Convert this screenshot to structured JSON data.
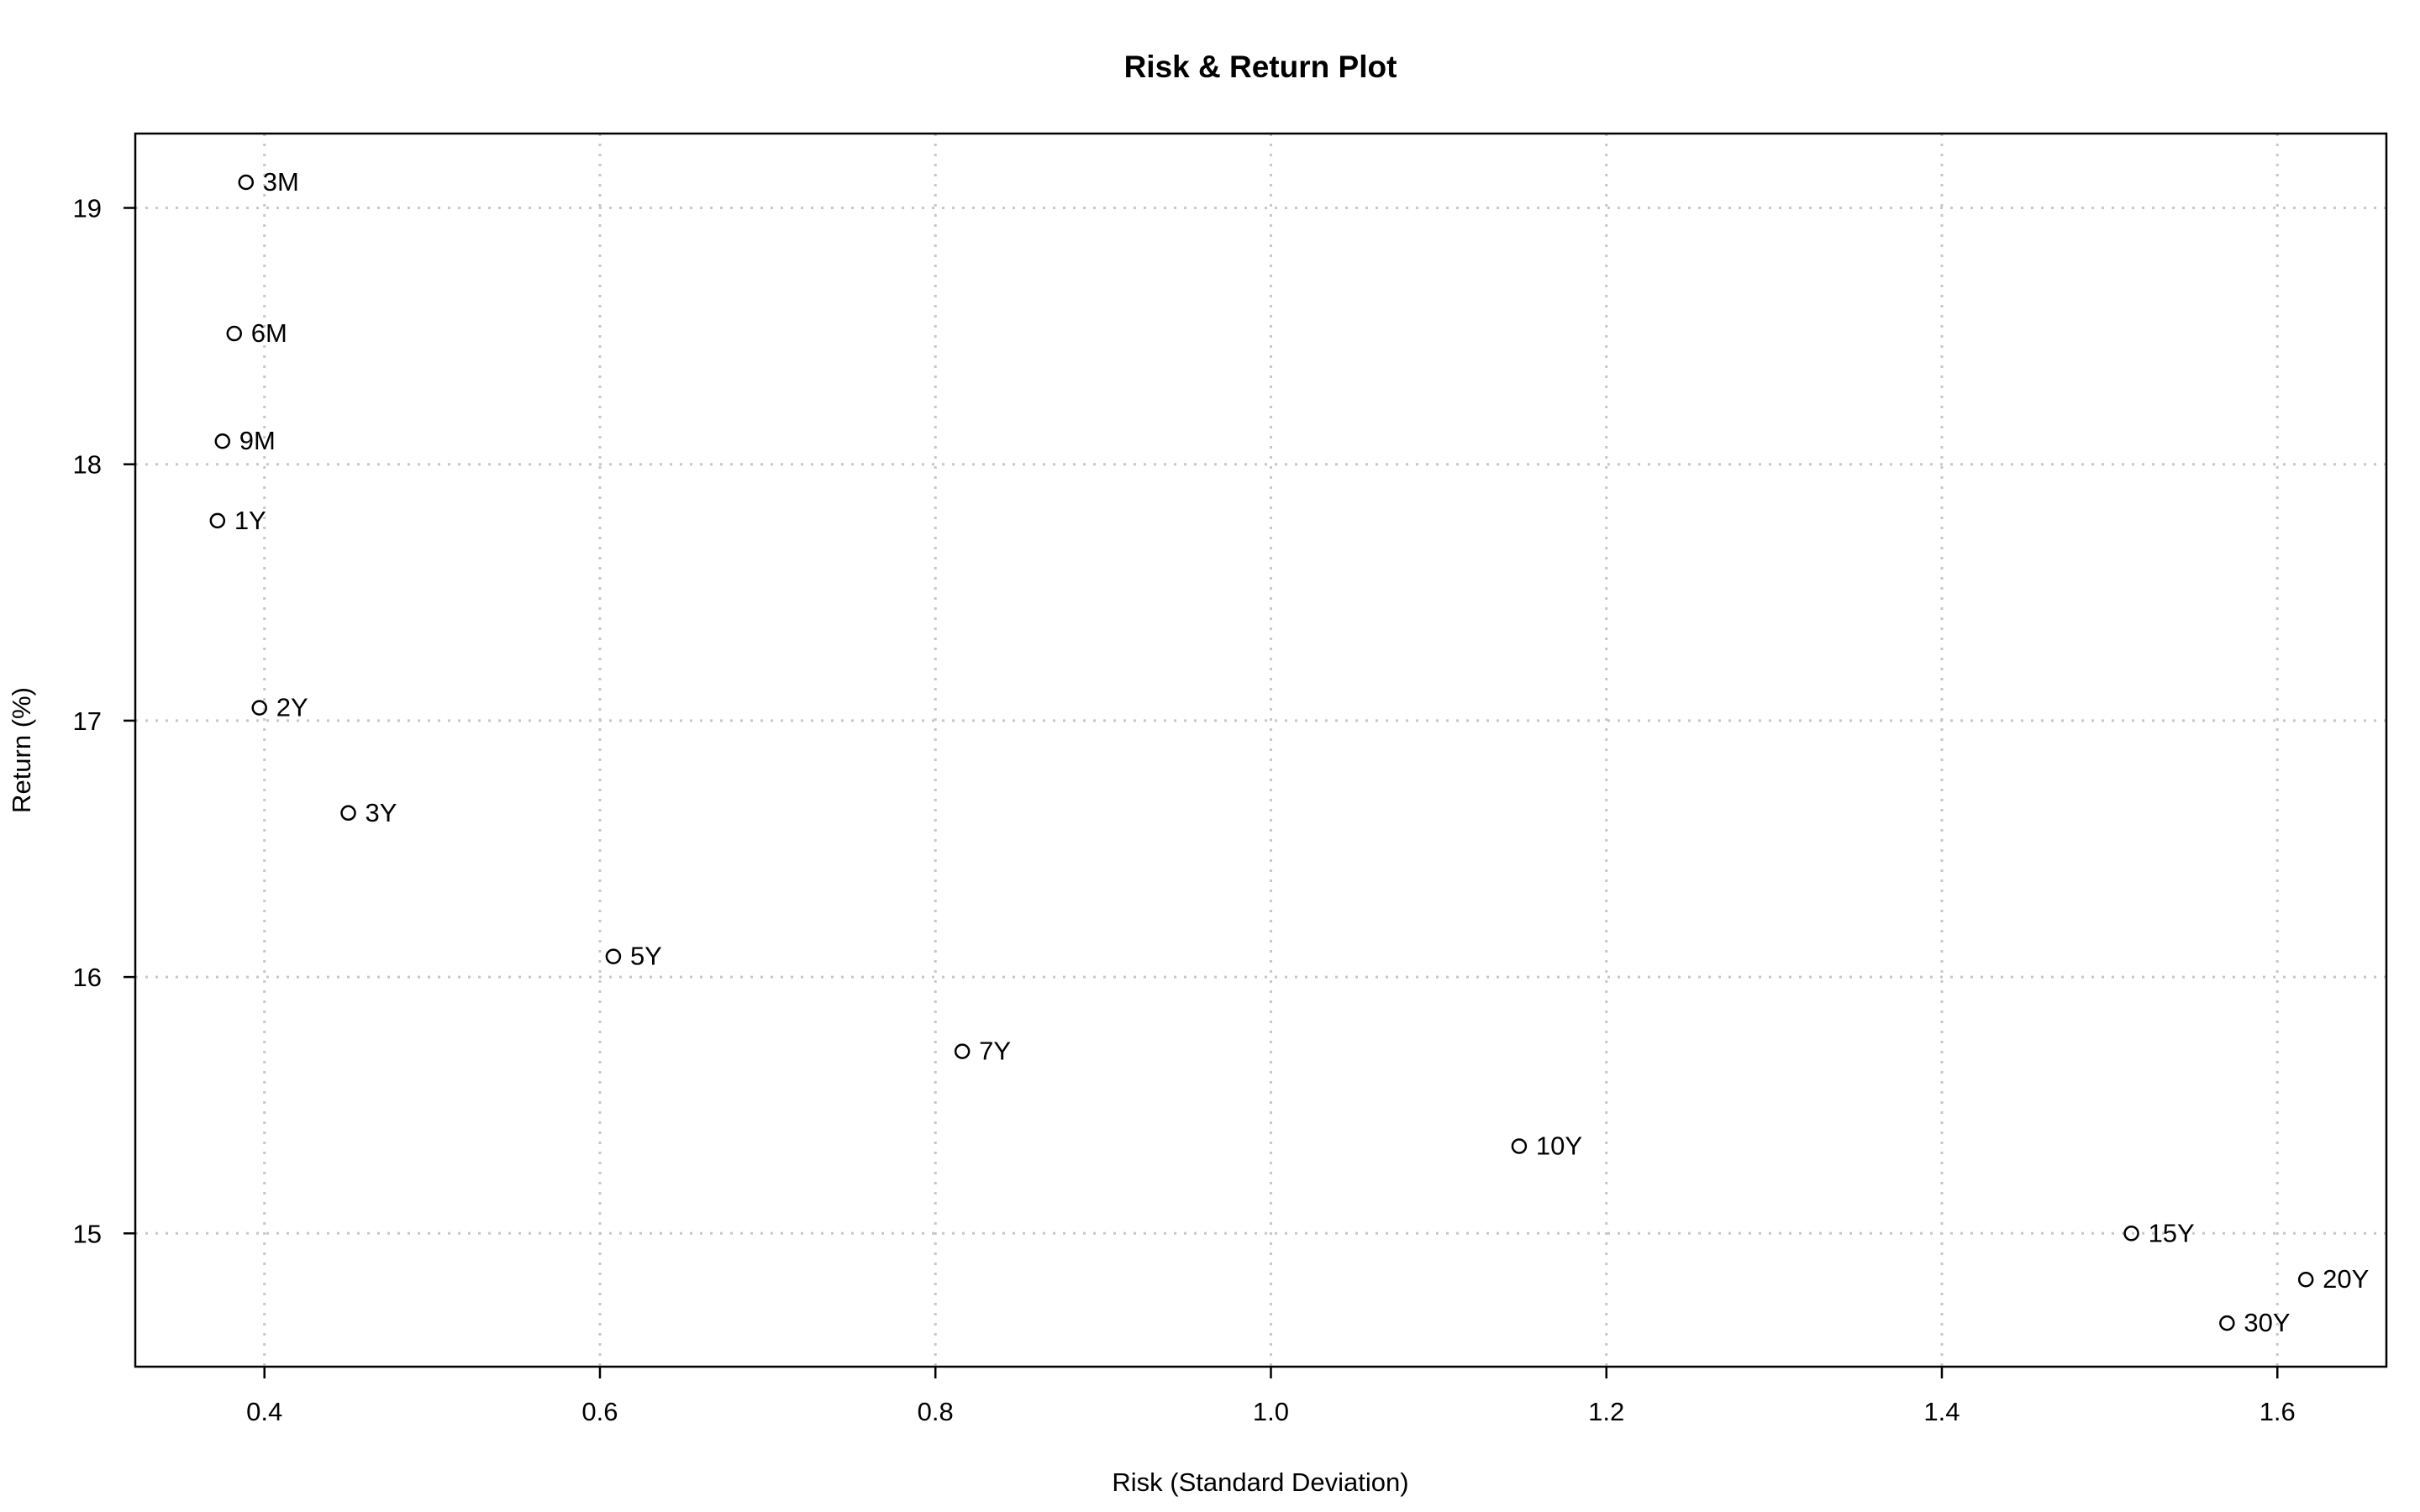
{
  "chart_data": {
    "type": "scatter",
    "title": "Risk & Return Plot",
    "xlabel": "Risk (Standard Deviation)",
    "ylabel": "Return (%)",
    "xlim": [
      0.323,
      1.665
    ],
    "ylim": [
      14.48,
      19.29
    ],
    "grid": true,
    "x_ticks": [
      0.4,
      0.6,
      0.8,
      1.0,
      1.2,
      1.4,
      1.6
    ],
    "x_tick_labels": [
      "0.4",
      "0.6",
      "0.8",
      "1.0",
      "1.2",
      "1.4",
      "1.6"
    ],
    "y_ticks": [
      15,
      16,
      17,
      18,
      19
    ],
    "y_tick_labels": [
      "15",
      "16",
      "17",
      "18",
      "19"
    ],
    "points": [
      {
        "label": "3M",
        "x": 0.389,
        "y": 19.1
      },
      {
        "label": "6M",
        "x": 0.382,
        "y": 18.51
      },
      {
        "label": "9M",
        "x": 0.375,
        "y": 18.09
      },
      {
        "label": "1Y",
        "x": 0.372,
        "y": 17.78
      },
      {
        "label": "2Y",
        "x": 0.397,
        "y": 17.05
      },
      {
        "label": "3Y",
        "x": 0.45,
        "y": 16.64
      },
      {
        "label": "5Y",
        "x": 0.608,
        "y": 16.08
      },
      {
        "label": "7Y",
        "x": 0.816,
        "y": 15.71
      },
      {
        "label": "10Y",
        "x": 1.148,
        "y": 15.34
      },
      {
        "label": "15Y",
        "x": 1.513,
        "y": 15.0
      },
      {
        "label": "20Y",
        "x": 1.617,
        "y": 14.82
      },
      {
        "label": "30Y",
        "x": 1.57,
        "y": 14.65
      }
    ]
  }
}
